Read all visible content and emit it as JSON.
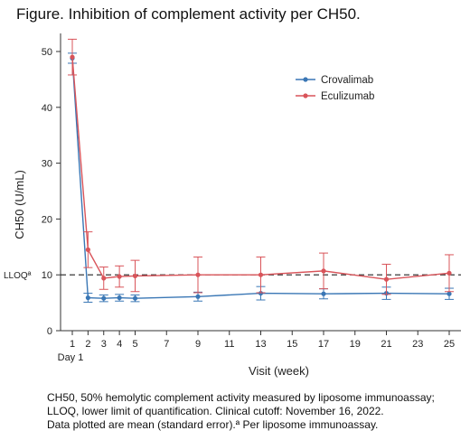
{
  "figure": {
    "title": "Figure. Inhibition of complement activity per CH50.",
    "caption_lines": [
      "CH50, 50% hemolytic complement activity measured by liposome immunoassay;",
      "LLOQ, lower limit of quantification. Clinical cutoff: November 16, 2022.",
      "Data plotted are mean (standard error).ª Per liposome immunoassay."
    ]
  },
  "chart_data": {
    "type": "line",
    "title": "Figure. Inhibition of complement activity per CH50.",
    "xlabel": "Visit (week)",
    "ylabel": "CH50 (U/mL)",
    "xlim": [
      1,
      25
    ],
    "ylim": [
      0,
      52
    ],
    "x_ticks": [
      1,
      2,
      3,
      4,
      5,
      7,
      9,
      11,
      13,
      15,
      17,
      19,
      21,
      23,
      25
    ],
    "x_tick_labels": [
      "1",
      "2",
      "3",
      "4",
      "5",
      "7",
      "9",
      "11",
      "13",
      "15",
      "17",
      "19",
      "21",
      "23",
      "25"
    ],
    "x_sublabel": "Day 1",
    "y_ticks": [
      0,
      10,
      20,
      30,
      40,
      50
    ],
    "reference_line": {
      "y": 10,
      "label": "LLOQª",
      "style": "dashed"
    },
    "legend": {
      "position": "top-right"
    },
    "grid": false,
    "series": [
      {
        "name": "Crovalimab",
        "color": "#3a77b5",
        "x": [
          1,
          2,
          3,
          4,
          5,
          9,
          13,
          17,
          21,
          25
        ],
        "y": [
          48.8,
          5.9,
          5.8,
          5.9,
          5.8,
          6.1,
          6.7,
          6.6,
          6.7,
          6.6
        ],
        "err_low": [
          47.9,
          5.1,
          5.2,
          5.3,
          5.2,
          5.3,
          5.5,
          5.7,
          5.6,
          5.6
        ],
        "err_high": [
          49.7,
          6.7,
          6.4,
          6.5,
          6.4,
          6.9,
          7.9,
          7.5,
          7.8,
          7.6
        ]
      },
      {
        "name": "Eculizumab",
        "color": "#d9545a",
        "x": [
          1,
          2,
          3,
          4,
          5,
          9,
          13,
          17,
          21,
          25
        ],
        "y": [
          49.0,
          14.5,
          9.4,
          9.7,
          9.8,
          10.0,
          10.0,
          10.7,
          9.2,
          10.3
        ],
        "err_low": [
          45.8,
          11.3,
          7.4,
          7.8,
          7.0,
          6.8,
          6.8,
          7.5,
          6.5,
          7.0
        ],
        "err_high": [
          52.2,
          17.7,
          11.4,
          11.6,
          12.6,
          13.2,
          13.2,
          13.9,
          11.9,
          13.6
        ]
      }
    ]
  }
}
